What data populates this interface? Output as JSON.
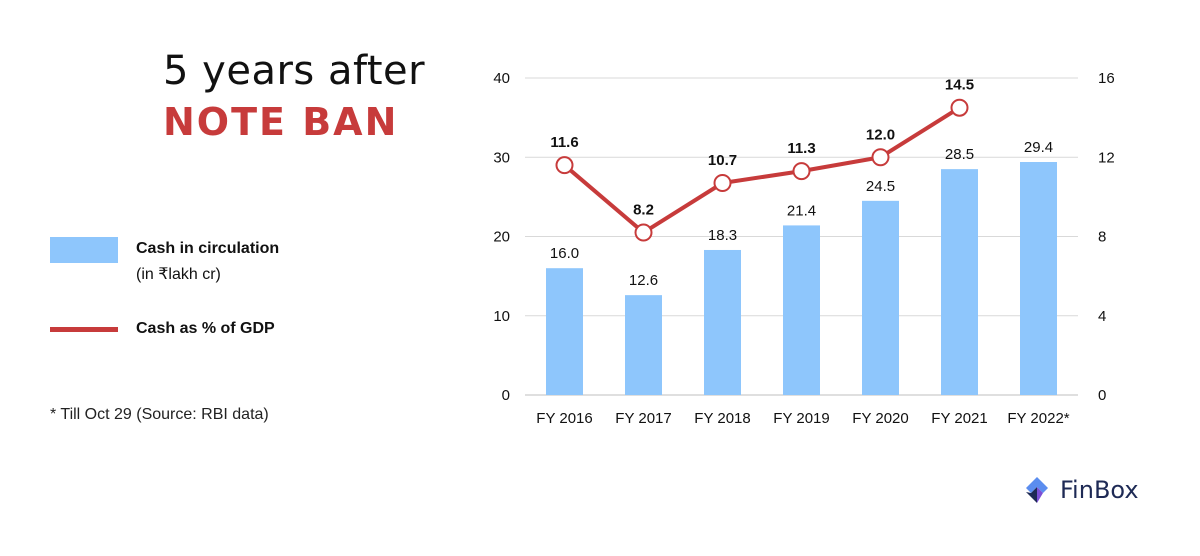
{
  "title": {
    "line1": "5 years after",
    "line2": "NOTE BAN"
  },
  "legend": {
    "bar_label": "Cash in circulation",
    "bar_sublabel": "(in ₹lakh cr)",
    "line_label": "Cash as % of GDP"
  },
  "footnote": "* Till Oct 29 (Source: RBI data)",
  "brand": {
    "name": "FinBox",
    "icon": "finbox-logo-icon"
  },
  "colors": {
    "bar": "#8ec6fc",
    "line": "#c73b3b",
    "title_accent": "#c73b3b",
    "grid": "#d9d9d9",
    "brand": "#1e2a55"
  },
  "chart_data": {
    "type": "bar",
    "categories": [
      "FY 2016",
      "FY 2017",
      "FY 2018",
      "FY 2019",
      "FY 2020",
      "FY 2021",
      "FY 2022*"
    ],
    "series": [
      {
        "name": "Cash in circulation",
        "type": "bar",
        "axis": "left",
        "values": [
          16.0,
          12.6,
          18.3,
          21.4,
          24.5,
          28.5,
          29.4
        ],
        "labels": [
          "16.0",
          "12.6",
          "18.3",
          "21.4",
          "24.5",
          "28.5",
          "29.4"
        ]
      },
      {
        "name": "Cash as % of GDP",
        "type": "line",
        "axis": "right",
        "values": [
          11.6,
          8.2,
          10.7,
          11.3,
          12.0,
          14.5,
          null
        ],
        "labels": [
          "11.6",
          "8.2",
          "10.7",
          "11.3",
          "12.0",
          "14.5",
          ""
        ]
      }
    ],
    "ylim_left": [
      0,
      40
    ],
    "yticks_left": [
      "0",
      "10",
      "20",
      "30",
      "40"
    ],
    "ylim_right": [
      0,
      16
    ],
    "yticks_right": [
      "0",
      "4",
      "8",
      "12",
      "16"
    ],
    "grid": true,
    "legend": "left"
  }
}
